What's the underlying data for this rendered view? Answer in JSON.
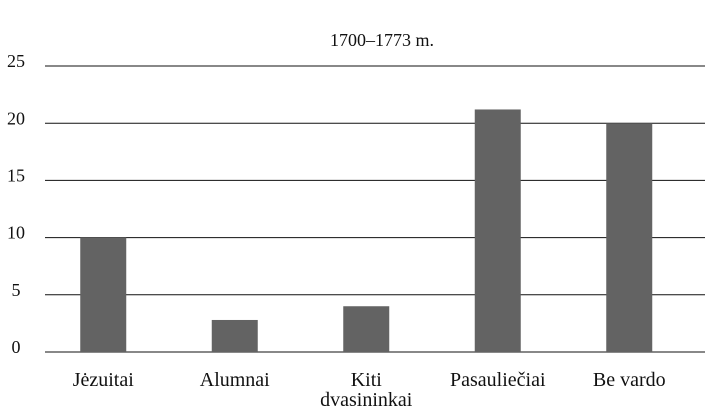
{
  "chart_data": {
    "type": "bar",
    "title": "1700–1773 m.",
    "categories": [
      "Jėzuitai",
      "Alumnai",
      "Kiti dvasininkai",
      "Pasauliečiai",
      "Be vardo"
    ],
    "values": [
      10,
      2.8,
      4,
      21.2,
      20
    ],
    "color": "#636363",
    "ylim": [
      0,
      25
    ],
    "yticks": [
      0,
      5,
      10,
      15,
      20,
      25
    ],
    "grid": true
  }
}
